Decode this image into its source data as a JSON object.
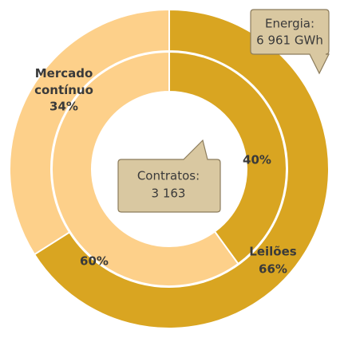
{
  "chart_data": [
    {
      "type": "donut",
      "name": "outer",
      "categories": [
        "Leilões",
        "Mercado contínuo"
      ],
      "values": [
        66,
        34
      ],
      "value_labels": [
        "66%",
        "34%"
      ],
      "colors": [
        "#d9a521",
        "#fdd08a"
      ],
      "callout": [
        "Energia:",
        "6 961 GWh"
      ]
    },
    {
      "type": "donut",
      "name": "inner",
      "values": [
        40,
        60
      ],
      "value_labels": [
        "40%",
        "60%"
      ],
      "colors": [
        "#d9a521",
        "#fdd08a"
      ],
      "callout": [
        "Contratos:",
        "3 163"
      ]
    }
  ]
}
